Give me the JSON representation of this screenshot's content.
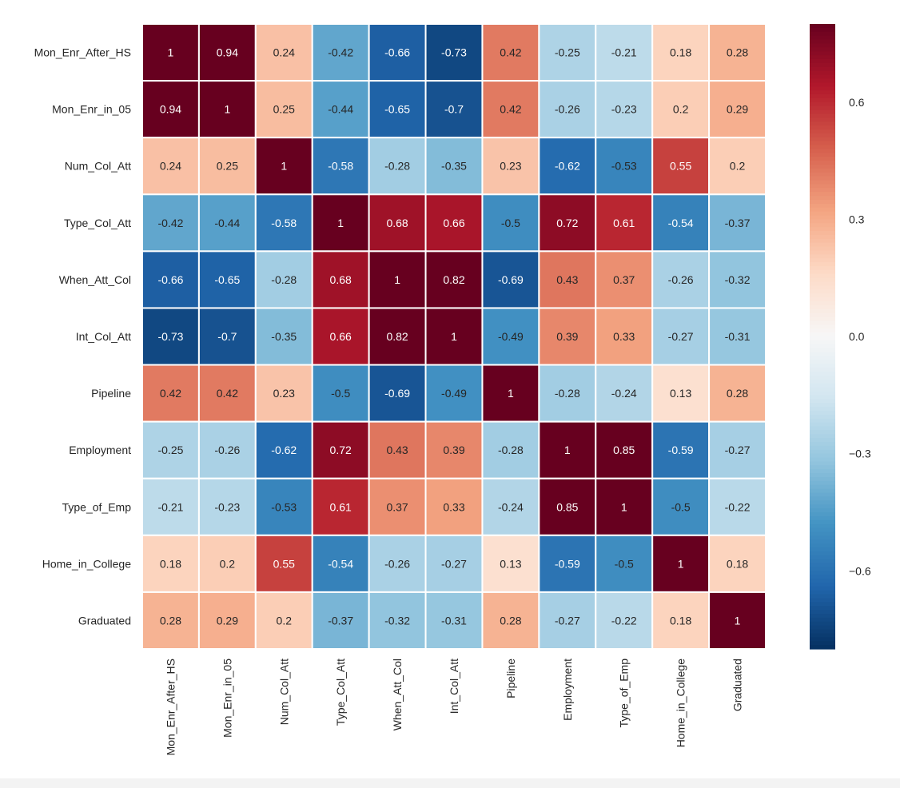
{
  "chart_data": {
    "type": "heatmap",
    "title": "",
    "xlabel": "",
    "ylabel": "",
    "colormap": "RdBu_r",
    "vmin": -0.8,
    "vmax": 0.8,
    "labels": [
      "Mon_Enr_After_HS",
      "Mon_Enr_in_05",
      "Num_Col_Att",
      "Type_Col_Att",
      "When_Att_Col",
      "Int_Col_Att",
      "Pipeline",
      "Employment",
      "Type_of_Emp",
      "Home_in_College",
      "Graduated"
    ],
    "matrix": [
      [
        1,
        0.94,
        0.24,
        -0.42,
        -0.66,
        -0.73,
        0.42,
        -0.25,
        -0.21,
        0.18,
        0.28
      ],
      [
        0.94,
        1,
        0.25,
        -0.44,
        -0.65,
        -0.7,
        0.42,
        -0.26,
        -0.23,
        0.2,
        0.29
      ],
      [
        0.24,
        0.25,
        1,
        -0.58,
        -0.28,
        -0.35,
        0.23,
        -0.62,
        -0.53,
        0.55,
        0.2
      ],
      [
        -0.42,
        -0.44,
        -0.58,
        1,
        0.68,
        0.66,
        -0.5,
        0.72,
        0.61,
        -0.54,
        -0.37
      ],
      [
        -0.66,
        -0.65,
        -0.28,
        0.68,
        1,
        0.82,
        -0.69,
        0.43,
        0.37,
        -0.26,
        -0.32
      ],
      [
        -0.73,
        -0.7,
        -0.35,
        0.66,
        0.82,
        1,
        -0.49,
        0.39,
        0.33,
        -0.27,
        -0.31
      ],
      [
        0.42,
        0.42,
        0.23,
        -0.5,
        -0.69,
        -0.49,
        1,
        -0.28,
        -0.24,
        0.13,
        0.28
      ],
      [
        -0.25,
        -0.26,
        -0.62,
        0.72,
        0.43,
        0.39,
        -0.28,
        1,
        0.85,
        -0.59,
        -0.27
      ],
      [
        -0.21,
        -0.23,
        -0.53,
        0.61,
        0.37,
        0.33,
        -0.24,
        0.85,
        1,
        -0.5,
        -0.22
      ],
      [
        0.18,
        0.2,
        0.55,
        -0.54,
        -0.26,
        -0.27,
        0.13,
        -0.59,
        -0.5,
        1,
        0.18
      ],
      [
        0.28,
        0.29,
        0.2,
        -0.37,
        -0.32,
        -0.31,
        0.28,
        -0.27,
        -0.22,
        0.18,
        1
      ]
    ],
    "annotations": true,
    "colorbar": {
      "ticks": [
        0.6,
        0.3,
        0.0,
        -0.3,
        -0.6
      ],
      "tick_labels": [
        "0.6",
        "0.3",
        "0.0",
        "−0.3",
        "−0.6"
      ]
    },
    "colors": {
      "cell_border": "#ffffff",
      "text_dark": "#262626",
      "text_light": "#ffffff"
    }
  }
}
